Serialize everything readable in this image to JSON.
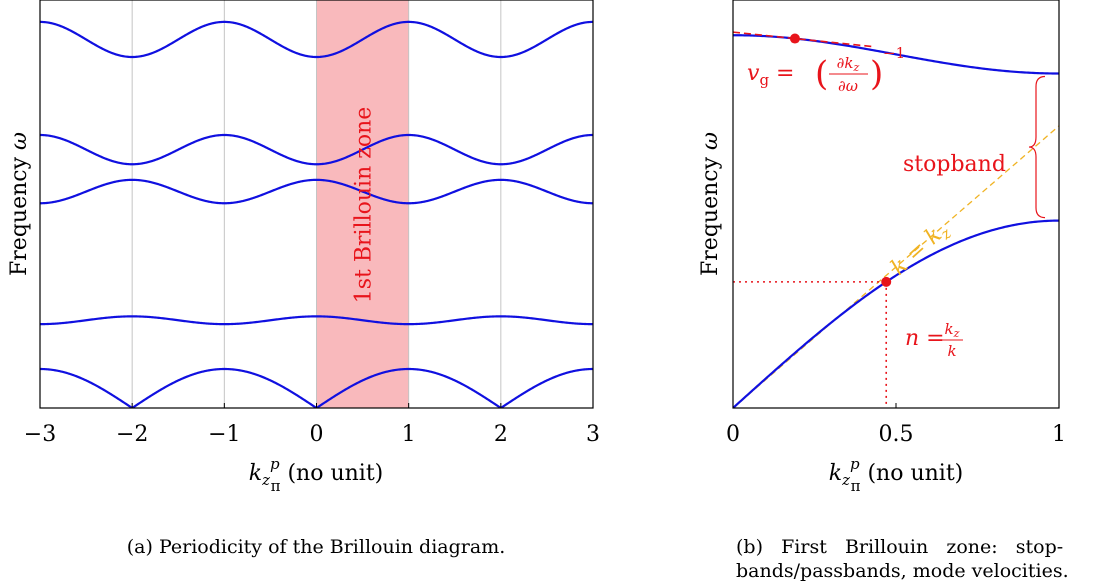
{
  "chart_data": [
    {
      "type": "line",
      "caption": "(a) Periodicity of the Brillouin diagram.",
      "xlabel": "k_z p/π (no unit)",
      "ylabel": "Frequency ω",
      "xlim": [
        -3,
        3
      ],
      "ylim": [
        0,
        1
      ],
      "x_ticks": [
        "−3",
        "−2",
        "−1",
        "0",
        "1",
        "2",
        "3"
      ],
      "grid": "vertical",
      "highlight": {
        "x_range": [
          0,
          1
        ],
        "label": "1st Brillouin zone",
        "color": "#f9b9bc"
      },
      "series": [
        {
          "band": 1,
          "min": 0.0,
          "max": 0.1,
          "shape": "acoustic"
        },
        {
          "band": 2,
          "min": 0.215,
          "max": 0.235,
          "shape": "even"
        },
        {
          "band": 3,
          "min": 0.525,
          "max": 0.585,
          "shape": "even"
        },
        {
          "band": 4,
          "min": 0.625,
          "max": 0.7,
          "shape": "odd"
        },
        {
          "band": 5,
          "min": 0.9,
          "max": 0.99,
          "shape": "odd"
        }
      ],
      "line_color": "#1010e0"
    },
    {
      "type": "line",
      "caption_line1": "(b)   First   Brillouin   zone:   stop-",
      "caption_line2": "bands/passbands, mode velocities.",
      "xlabel": "k_z p/π (no unit)",
      "ylabel": "Frequency ω",
      "xlim": [
        0,
        1
      ],
      "ylim": [
        0,
        1
      ],
      "x_ticks": [
        "0",
        "0.5",
        "1"
      ],
      "x_tick_values": [
        0,
        0.5,
        1
      ],
      "grid": "none",
      "series": [
        {
          "name": "",
          "x": [
            0,
            0.1,
            0.2,
            0.3,
            0.4,
            0.5,
            0.6,
            0.7,
            0.8,
            0.9,
            1.0
          ],
          "y": [
            0,
            0.078,
            0.156,
            0.231,
            0.296,
            0.352,
            0.395,
            0.427,
            0.45,
            0.461,
            0.465
          ]
        },
        {
          "name": "",
          "x": [
            0,
            0.1,
            0.2,
            0.3,
            0.4,
            0.5,
            0.6,
            0.7,
            0.8,
            0.9,
            1.0
          ],
          "y": [
            0.925,
            0.922,
            0.914,
            0.902,
            0.888,
            0.872,
            0.858,
            0.846,
            0.837,
            0.832,
            0.83
          ]
        }
      ],
      "light_line": {
        "label": "k = k_z",
        "slope": 0.7,
        "x_range": [
          0,
          1
        ]
      },
      "points": [
        {
          "x": 0.47,
          "y": 0.29,
          "label": "n = k_z/k"
        },
        {
          "x": 0.19,
          "y": 0.915,
          "label": "v_g = (∂k_z/∂ω)^−1"
        }
      ],
      "stopband": {
        "y_range": [
          0.465,
          0.83
        ],
        "label": "stopband"
      },
      "accent_color": "#e8141b",
      "light_line_color": "#f0b323"
    }
  ]
}
